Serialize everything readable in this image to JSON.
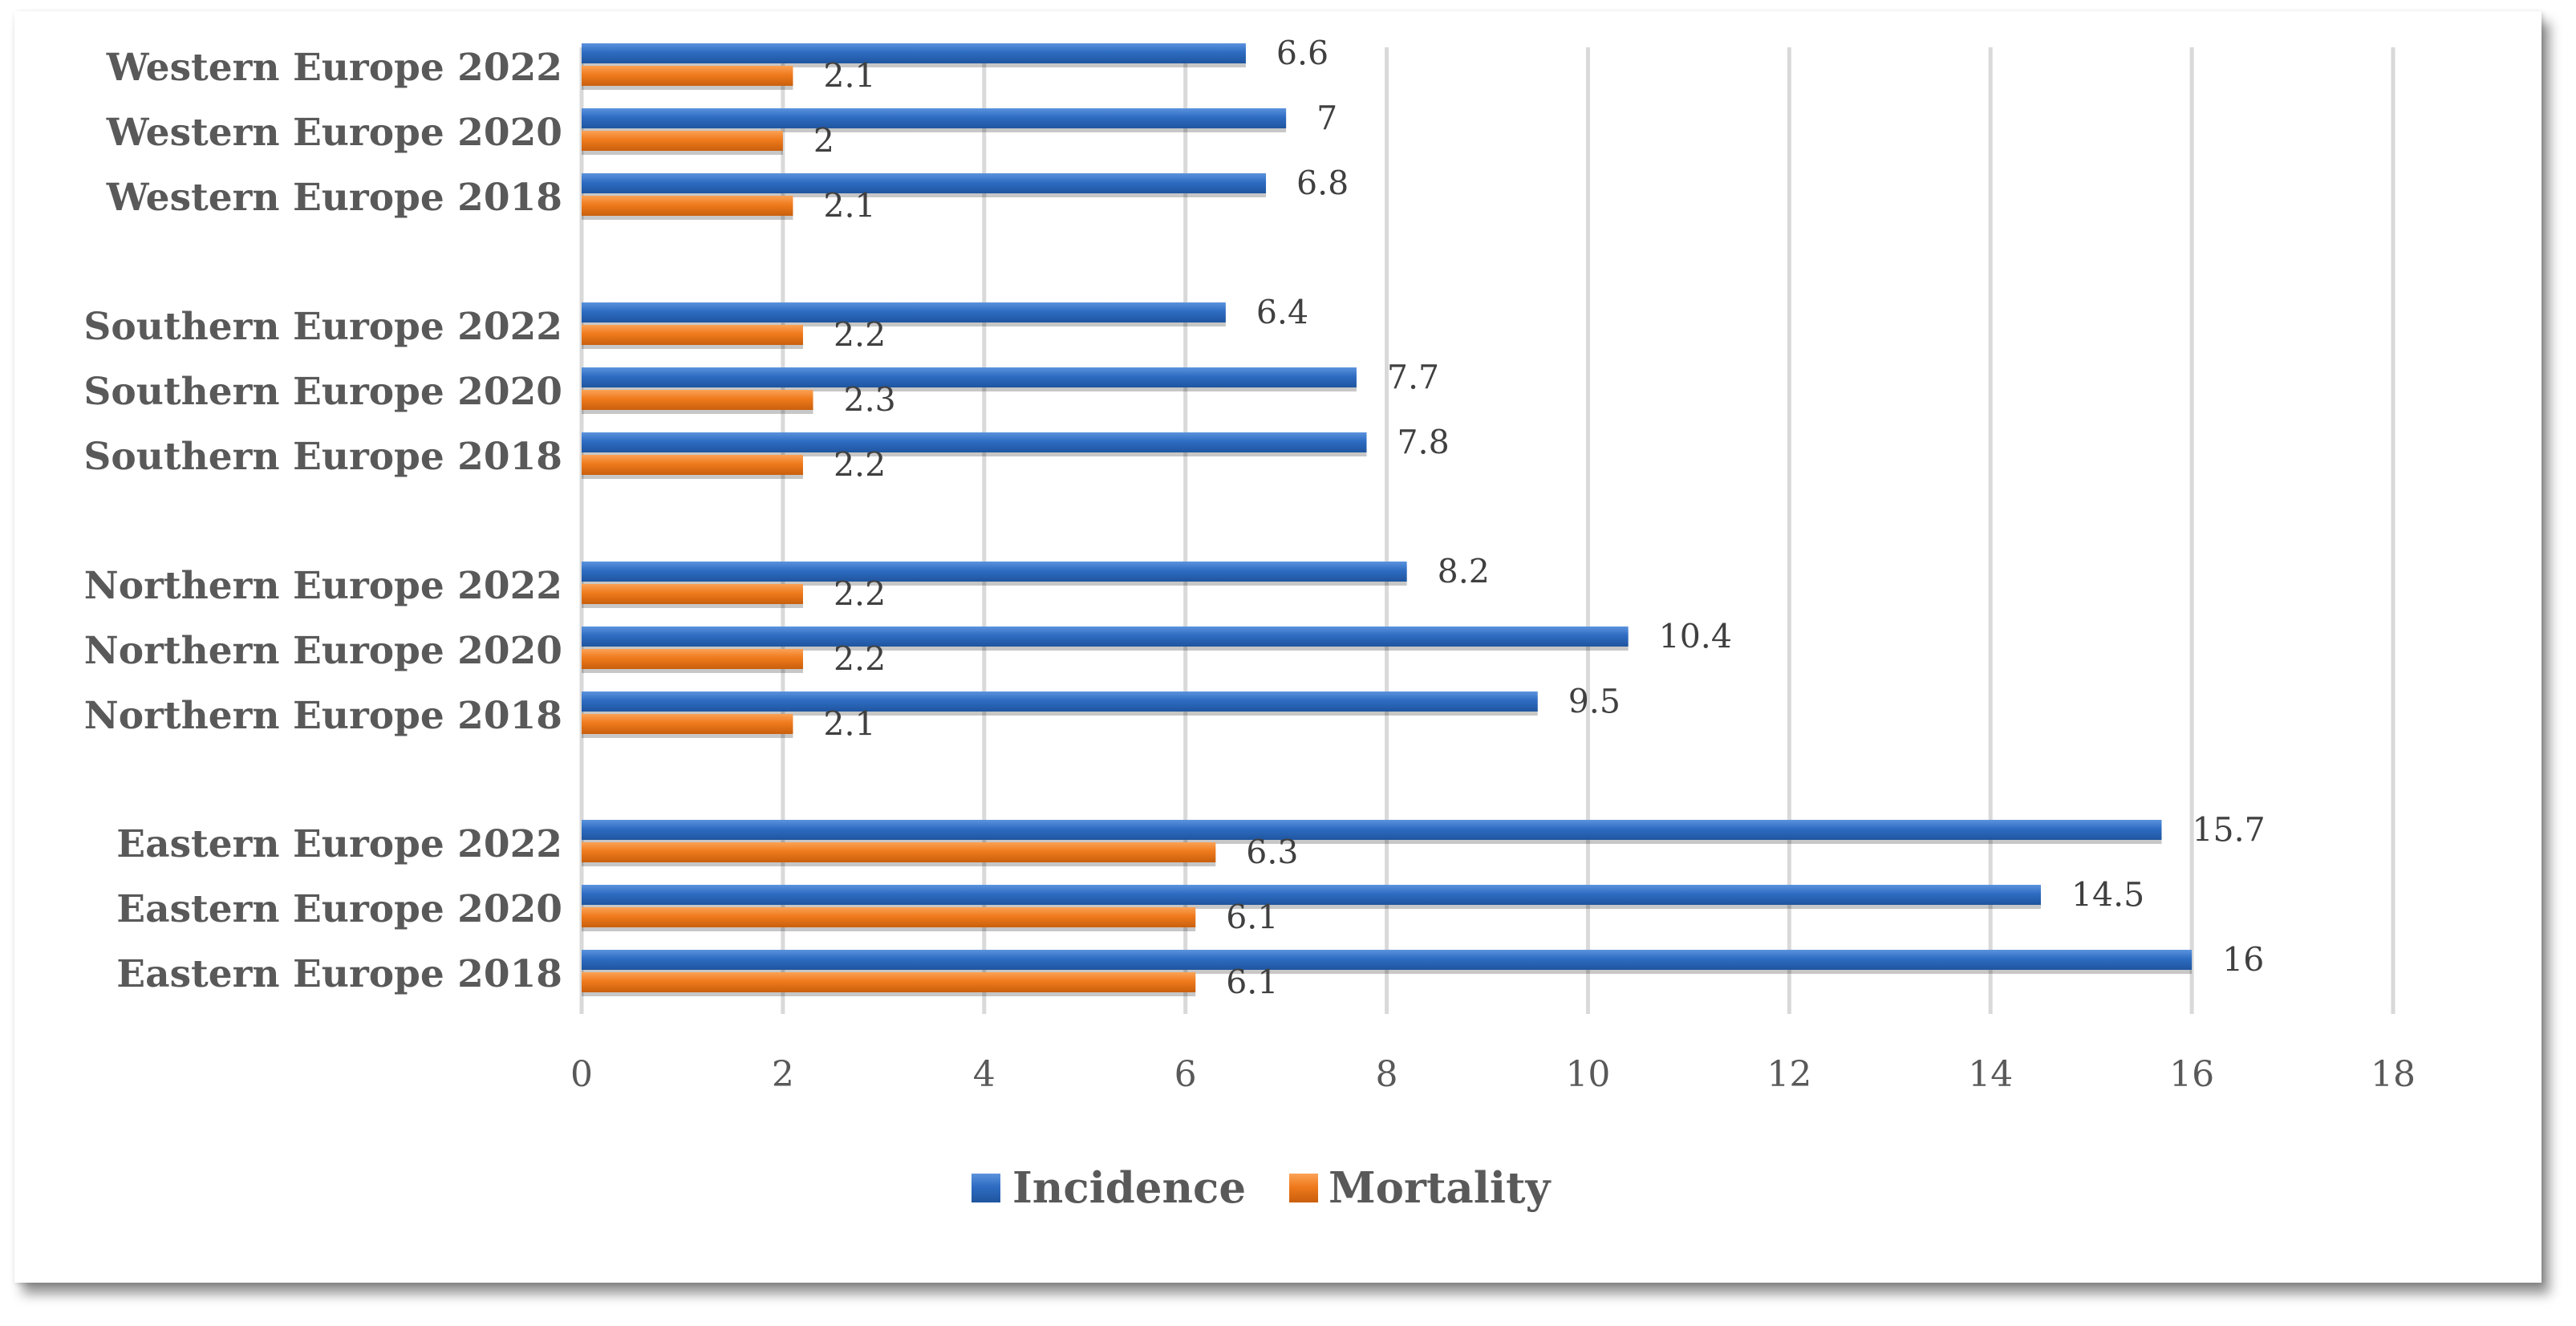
{
  "chart_data": {
    "type": "bar",
    "orientation": "horizontal",
    "title": "",
    "xlabel": "",
    "ylabel": "",
    "xlim": [
      0,
      18
    ],
    "xticks": [
      0,
      2,
      4,
      6,
      8,
      10,
      12,
      14,
      16,
      18
    ],
    "grid": true,
    "legend_position": "bottom",
    "groups": [
      {
        "name": "Western Europe",
        "categories": [
          "Western Europe 2022",
          "Western Europe 2020",
          "Western Europe 2018"
        ]
      },
      {
        "name": "Southern Europe",
        "categories": [
          "Southern Europe 2022",
          "Southern Europe 2020",
          "Southern Europe 2018"
        ]
      },
      {
        "name": "Northern Europe",
        "categories": [
          "Northern Europe 2022",
          "Northern Europe 2020",
          "Northern Europe 2018"
        ]
      },
      {
        "name": "Eastern Europe",
        "categories": [
          "Eastern Europe 2022",
          "Eastern Europe 2020",
          "Eastern Europe 2018"
        ]
      }
    ],
    "categories": [
      "Western Europe 2022",
      "Western Europe 2020",
      "Western Europe 2018",
      "Southern Europe 2022",
      "Southern Europe 2020",
      "Southern Europe 2018",
      "Northern Europe 2022",
      "Northern Europe 2020",
      "Northern Europe 2018",
      "Eastern Europe 2022",
      "Eastern Europe 2020",
      "Eastern Europe 2018"
    ],
    "series": [
      {
        "name": "Incidence",
        "color": "#2f6fc6",
        "values": [
          6.6,
          7,
          6.8,
          6.4,
          7.7,
          7.8,
          8.2,
          10.4,
          9.5,
          15.7,
          14.5,
          16
        ]
      },
      {
        "name": "Mortality",
        "color": "#f07b1e",
        "values": [
          2.1,
          2,
          2.1,
          2.2,
          2.3,
          2.2,
          2.2,
          2.2,
          2.1,
          6.3,
          6.1,
          6.1
        ]
      }
    ]
  },
  "legend": {
    "items": [
      {
        "label": "Incidence",
        "color": "#2f6fc6"
      },
      {
        "label": "Mortality",
        "color": "#f07b1e"
      }
    ]
  }
}
